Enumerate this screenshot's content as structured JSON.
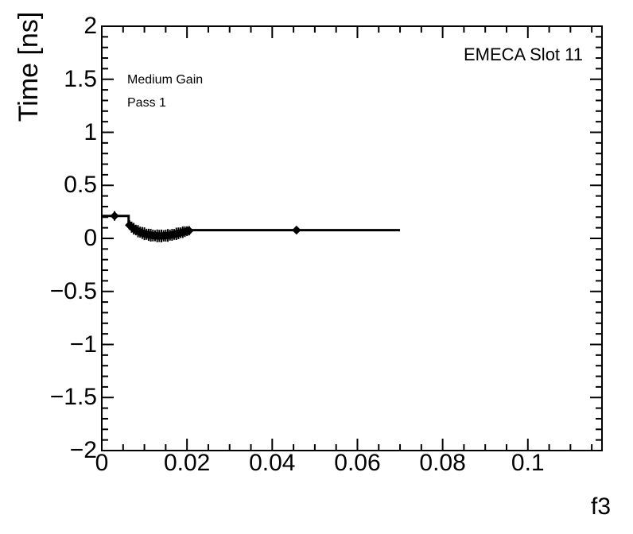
{
  "chart_data": {
    "type": "scatter",
    "title": "",
    "xlabel": "f3",
    "ylabel": "Time [ns]",
    "annotations": {
      "detector_label": "EMECA Slot 11",
      "gain_label": "Medium Gain",
      "pass_label": "Pass 1"
    },
    "axes": {
      "xlim": [
        0,
        0.1174
      ],
      "ylim": [
        -2,
        2
      ],
      "x_major_ticks": [
        0,
        0.02,
        0.04,
        0.06,
        0.08,
        0.1
      ],
      "x_tick_labels": [
        "0",
        "0.02",
        "0.04",
        "0.06",
        "0.08",
        "0.1"
      ],
      "x_minor_step": 0.005,
      "y_major_ticks": [
        -2,
        -1.5,
        -1,
        -0.5,
        0,
        0.5,
        1,
        1.5,
        2
      ],
      "y_tick_labels": [
        "−2",
        "−1.5",
        "−1",
        "−0.5",
        "0",
        "0.5",
        "1",
        "1.5",
        "2"
      ],
      "y_minor_step": 0.1,
      "grid": false,
      "mirror_ticks": true
    },
    "series": [
      {
        "name": "time-offset-vs-f3",
        "marker": "diamond",
        "color": "#000000",
        "points": [
          {
            "x": 0.003,
            "y": 0.212,
            "ey": 0.045
          },
          {
            "x": 0.0065,
            "y": 0.125,
            "ey": 0.045
          },
          {
            "x": 0.007,
            "y": 0.106,
            "ey": 0.052
          },
          {
            "x": 0.0075,
            "y": 0.091,
            "ey": 0.055
          },
          {
            "x": 0.008,
            "y": 0.079,
            "ey": 0.05
          },
          {
            "x": 0.0085,
            "y": 0.068,
            "ey": 0.058
          },
          {
            "x": 0.009,
            "y": 0.059,
            "ey": 0.052
          },
          {
            "x": 0.0095,
            "y": 0.051,
            "ey": 0.056
          },
          {
            "x": 0.01,
            "y": 0.044,
            "ey": 0.06
          },
          {
            "x": 0.0105,
            "y": 0.039,
            "ey": 0.052
          },
          {
            "x": 0.011,
            "y": 0.034,
            "ey": 0.057
          },
          {
            "x": 0.0115,
            "y": 0.03,
            "ey": 0.06
          },
          {
            "x": 0.012,
            "y": 0.027,
            "ey": 0.055
          },
          {
            "x": 0.0125,
            "y": 0.025,
            "ey": 0.052
          },
          {
            "x": 0.013,
            "y": 0.024,
            "ey": 0.06
          },
          {
            "x": 0.0135,
            "y": 0.023,
            "ey": 0.057
          },
          {
            "x": 0.014,
            "y": 0.023,
            "ey": 0.06
          },
          {
            "x": 0.0145,
            "y": 0.024,
            "ey": 0.053
          },
          {
            "x": 0.015,
            "y": 0.026,
            "ey": 0.056
          },
          {
            "x": 0.0155,
            "y": 0.028,
            "ey": 0.06
          },
          {
            "x": 0.016,
            "y": 0.031,
            "ey": 0.052
          },
          {
            "x": 0.0165,
            "y": 0.034,
            "ey": 0.056
          },
          {
            "x": 0.017,
            "y": 0.038,
            "ey": 0.051
          },
          {
            "x": 0.0175,
            "y": 0.043,
            "ey": 0.058
          },
          {
            "x": 0.018,
            "y": 0.048,
            "ey": 0.055
          },
          {
            "x": 0.0185,
            "y": 0.053,
            "ey": 0.05
          },
          {
            "x": 0.019,
            "y": 0.058,
            "ey": 0.054
          },
          {
            "x": 0.0195,
            "y": 0.063,
            "ey": 0.05
          },
          {
            "x": 0.02,
            "y": 0.068,
            "ey": 0.046
          },
          {
            "x": 0.0205,
            "y": 0.072,
            "ey": 0.044
          },
          {
            "x": 0.0457,
            "y": 0.078,
            "ey": 0.02
          }
        ],
        "hist_line": [
          [
            0,
            0.212
          ],
          [
            0.0063,
            0.212
          ],
          [
            0.0063,
            0.125
          ],
          [
            0.0065,
            0.125
          ],
          [
            0.007,
            0.106
          ],
          [
            0.0075,
            0.091
          ],
          [
            0.008,
            0.079
          ],
          [
            0.0085,
            0.068
          ],
          [
            0.009,
            0.059
          ],
          [
            0.0095,
            0.051
          ],
          [
            0.01,
            0.044
          ],
          [
            0.0105,
            0.039
          ],
          [
            0.011,
            0.034
          ],
          [
            0.0115,
            0.03
          ],
          [
            0.012,
            0.027
          ],
          [
            0.0125,
            0.025
          ],
          [
            0.013,
            0.024
          ],
          [
            0.0135,
            0.023
          ],
          [
            0.014,
            0.023
          ],
          [
            0.0145,
            0.024
          ],
          [
            0.015,
            0.026
          ],
          [
            0.0155,
            0.028
          ],
          [
            0.016,
            0.031
          ],
          [
            0.0165,
            0.034
          ],
          [
            0.017,
            0.038
          ],
          [
            0.0175,
            0.043
          ],
          [
            0.018,
            0.048
          ],
          [
            0.0185,
            0.053
          ],
          [
            0.019,
            0.058
          ],
          [
            0.0195,
            0.063
          ],
          [
            0.02,
            0.068
          ],
          [
            0.0205,
            0.072
          ],
          [
            0.0209,
            0.078
          ],
          [
            0.07,
            0.078
          ]
        ]
      }
    ]
  }
}
